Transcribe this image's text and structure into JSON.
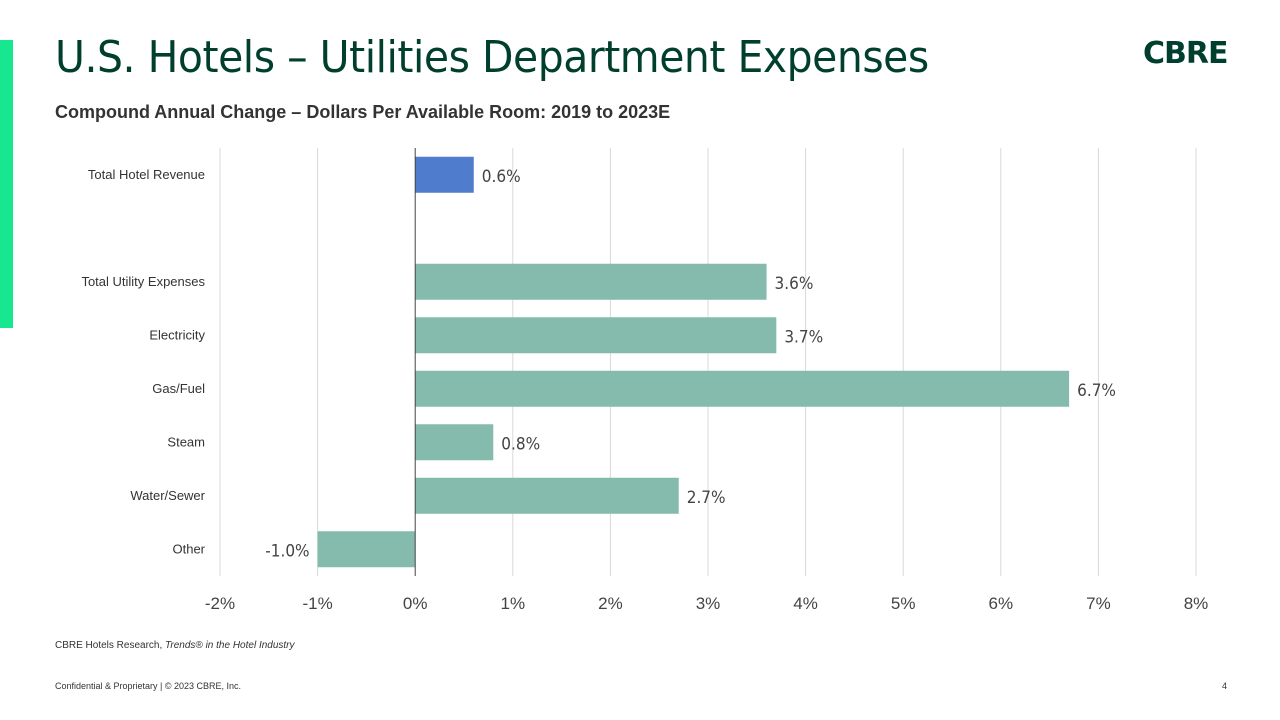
{
  "header": {
    "title": "U.S. Hotels – Utilities Department Expenses",
    "subtitle": "Compound Annual Change – Dollars Per Available Room: 2019 to 2023E",
    "logo_text": "CBRE"
  },
  "source": {
    "prefix": "CBRE Hotels Research, ",
    "italic": "Trends® in the Hotel Industry"
  },
  "footer": {
    "confidential": "Confidential & Proprietary | © 2023 CBRE, Inc.",
    "page_number": "4"
  },
  "colors": {
    "accent": "#17e88f",
    "brand": "#003f2d",
    "revenue_bar": "#4f7ccc",
    "utility_bar": "#84bbad"
  },
  "chart_data": {
    "type": "bar",
    "orientation": "horizontal",
    "categories": [
      "Total Hotel Revenue",
      "",
      "Total Utility Expenses",
      "Electricity",
      "Gas/Fuel",
      "Steam",
      "Water/Sewer",
      "Other"
    ],
    "values": [
      0.6,
      null,
      3.6,
      3.7,
      6.7,
      0.8,
      2.7,
      -1.0
    ],
    "data_labels": [
      "0.6%",
      "",
      "3.6%",
      "3.7%",
      "6.7%",
      "0.8%",
      "2.7%",
      "-1.0%"
    ],
    "bar_colors": [
      "#4f7ccc",
      null,
      "#84bbad",
      "#84bbad",
      "#84bbad",
      "#84bbad",
      "#84bbad",
      "#84bbad"
    ],
    "xlim": [
      -2,
      8
    ],
    "x_ticks": [
      -2,
      -1,
      0,
      1,
      2,
      3,
      4,
      5,
      6,
      7,
      8
    ],
    "x_tick_labels": [
      "-2%",
      "-1%",
      "0%",
      "1%",
      "2%",
      "3%",
      "4%",
      "5%",
      "6%",
      "7%",
      "8%"
    ],
    "grid": "vertical",
    "legend": "none",
    "title": "",
    "xlabel": "",
    "ylabel": ""
  }
}
